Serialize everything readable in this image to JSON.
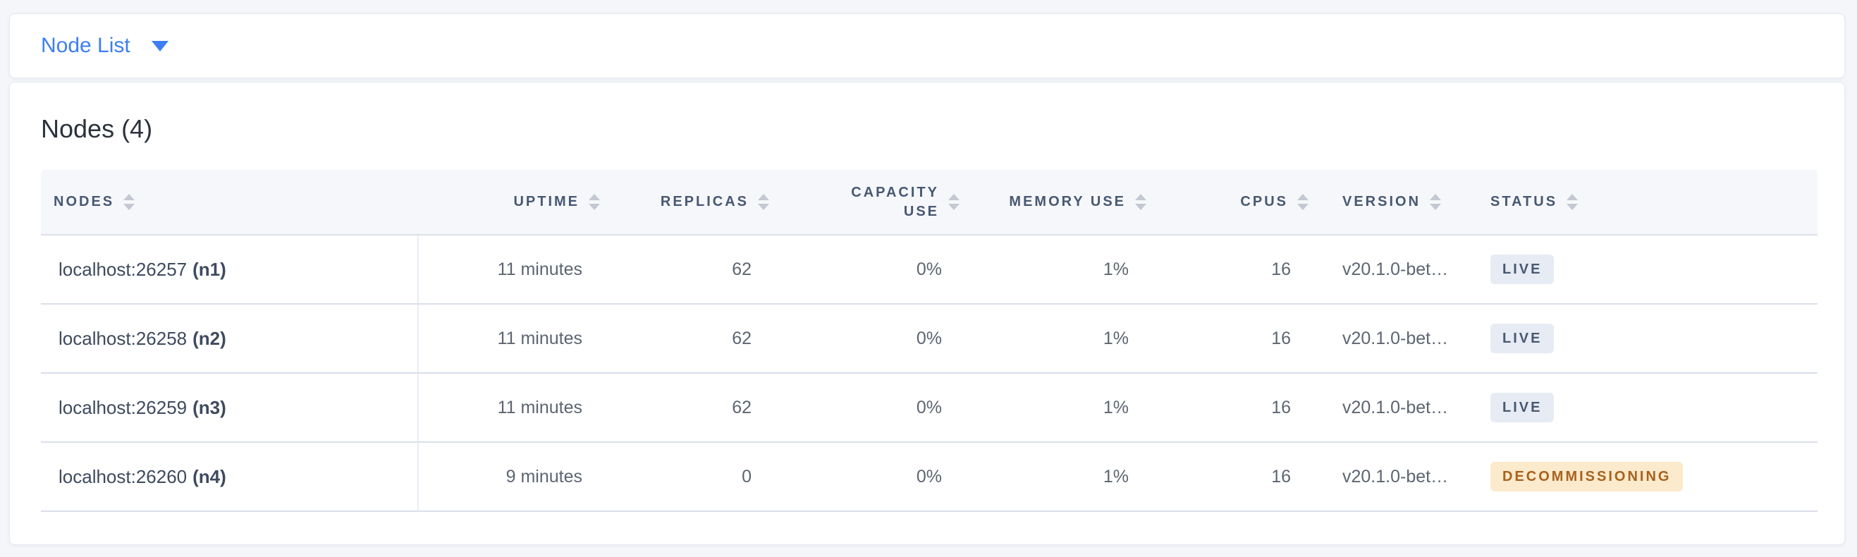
{
  "toolbar": {
    "dropdown_label": "Node List"
  },
  "main": {
    "title": "Nodes (4)",
    "table": {
      "columns": [
        {
          "label": "NODES"
        },
        {
          "label": "UPTIME"
        },
        {
          "label": "REPLICAS"
        },
        {
          "label": "CAPACITY USE"
        },
        {
          "label": "MEMORY USE"
        },
        {
          "label": "CPUS"
        },
        {
          "label": "VERSION"
        },
        {
          "label": "STATUS"
        }
      ],
      "rows": [
        {
          "addr": "localhost:26257",
          "id": "(n1)",
          "uptime": "11 minutes",
          "replicas": "62",
          "capacity_use": "0%",
          "memory_use": "1%",
          "cpus": "16",
          "version": "v20.1.0-bet…",
          "status": "LIVE",
          "status_type": "live"
        },
        {
          "addr": "localhost:26258",
          "id": "(n2)",
          "uptime": "11 minutes",
          "replicas": "62",
          "capacity_use": "0%",
          "memory_use": "1%",
          "cpus": "16",
          "version": "v20.1.0-bet…",
          "status": "LIVE",
          "status_type": "live"
        },
        {
          "addr": "localhost:26259",
          "id": "(n3)",
          "uptime": "11 minutes",
          "replicas": "62",
          "capacity_use": "0%",
          "memory_use": "1%",
          "cpus": "16",
          "version": "v20.1.0-bet…",
          "status": "LIVE",
          "status_type": "live"
        },
        {
          "addr": "localhost:26260",
          "id": "(n4)",
          "uptime": "9 minutes",
          "replicas": "0",
          "capacity_use": "0%",
          "memory_use": "1%",
          "cpus": "16",
          "version": "v20.1.0-bet…",
          "status": "DECOMMISSIONING",
          "status_type": "decommissioning"
        }
      ]
    }
  },
  "colors": {
    "accent_blue": "#3d7ef2",
    "header_text": "#475872",
    "live_badge_bg": "#e7ebf3",
    "live_badge_text": "#475872",
    "decommissioning_badge_bg": "#fbeacb",
    "decommissioning_badge_text": "#a8611e"
  }
}
